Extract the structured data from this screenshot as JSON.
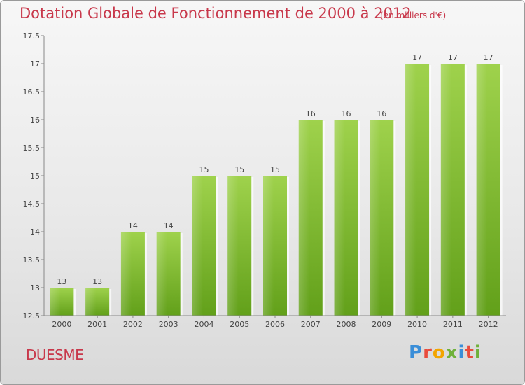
{
  "header": {
    "title": "Dotation Globale de Fonctionnement de 2000 à 2012",
    "subtitle": "(en milliers d'€)"
  },
  "footer": {
    "commune": "DUESME",
    "logo_text": "Proxiti",
    "logo_colors": [
      "#3a8ed8",
      "#e94b3c",
      "#f2a500",
      "#6fb13a",
      "#3a8ed8",
      "#e94b3c",
      "#6fb13a"
    ]
  },
  "chart_data": {
    "type": "bar",
    "categories": [
      "2000",
      "2001",
      "2002",
      "2003",
      "2004",
      "2005",
      "2006",
      "2007",
      "2008",
      "2009",
      "2010",
      "2011",
      "2012"
    ],
    "values": [
      13,
      13,
      14,
      14,
      15,
      15,
      15,
      16,
      16,
      16,
      17,
      17,
      17
    ],
    "ylim": [
      12.5,
      17.5
    ],
    "yticks": [
      "12.5",
      "13",
      "13.5",
      "14",
      "14.5",
      "15",
      "15.5",
      "16",
      "16.5",
      "17",
      "17.5"
    ],
    "grid": false,
    "bar_color": "#7dbb2c",
    "title": "Dotation Globale de Fonctionnement de 2000 à 2012",
    "xlabel": "",
    "ylabel": ""
  }
}
